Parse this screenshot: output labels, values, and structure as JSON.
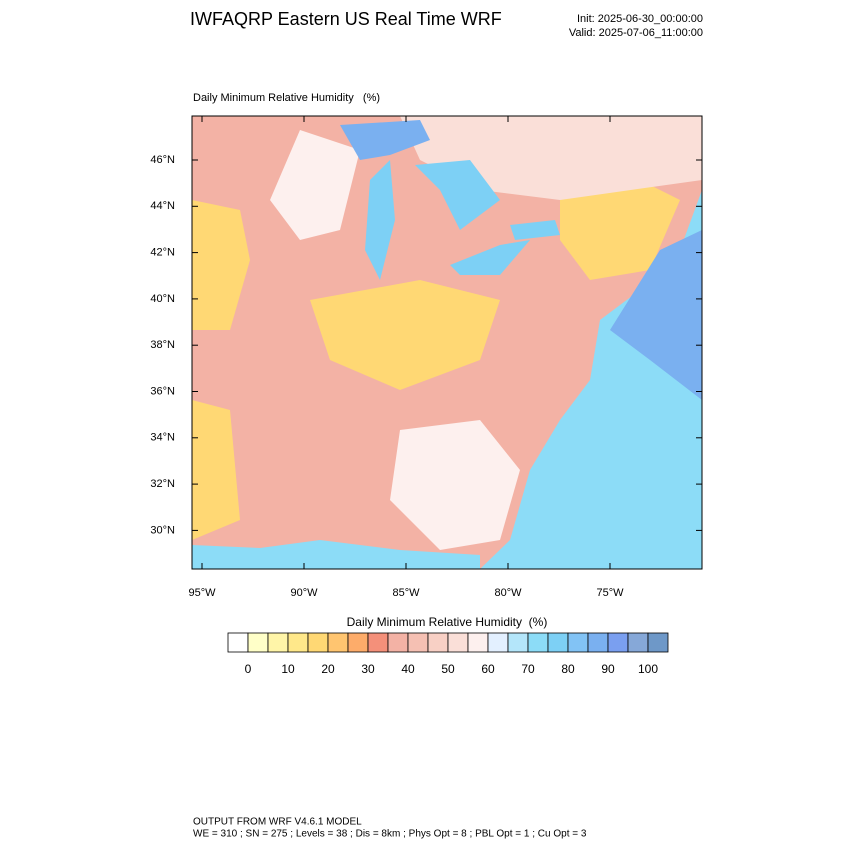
{
  "header": {
    "title": "IWFAQRP Eastern US Real Time WRF",
    "init": "Init: 2025-06-30_00:00:00",
    "valid": "Valid: 2025-07-06_11:00:00"
  },
  "map": {
    "title": "Daily Minimum Relative Humidity   (%)",
    "lat_labels": [
      "46°N",
      "44°N",
      "42°N",
      "40°N",
      "38°N",
      "36°N",
      "34°N",
      "32°N",
      "30°N"
    ],
    "lon_labels": [
      "95°W",
      "90°W",
      "85°W",
      "80°W",
      "75°W"
    ]
  },
  "colorbar": {
    "title": "Daily Minimum Relative Humidity  (%)",
    "labels": [
      "0",
      "10",
      "20",
      "30",
      "40",
      "50",
      "60",
      "70",
      "80",
      "90",
      "100"
    ],
    "colors": [
      "#ffffff",
      "#ffffc8",
      "#fff5a8",
      "#ffe88a",
      "#ffd874",
      "#ffc570",
      "#fdac6a",
      "#f4907a",
      "#f3b2a5",
      "#f5c0b3",
      "#f8d0c5",
      "#fadfd8",
      "#fdf0ee",
      "#e3f0ff",
      "#b4e6fa",
      "#8cdcf7",
      "#7dd0f5",
      "#82c3f5",
      "#7ab0f0",
      "#7a9ff0",
      "#86a8d8",
      "#6e98c8"
    ]
  },
  "footer": {
    "line1": "OUTPUT FROM WRF V4.6.1 MODEL",
    "line2": "WE = 310 ; SN = 275 ; Levels = 38 ; Dis = 8km ; Phys Opt = 8 ; PBL Opt = 1 ; Cu Opt = 3"
  }
}
